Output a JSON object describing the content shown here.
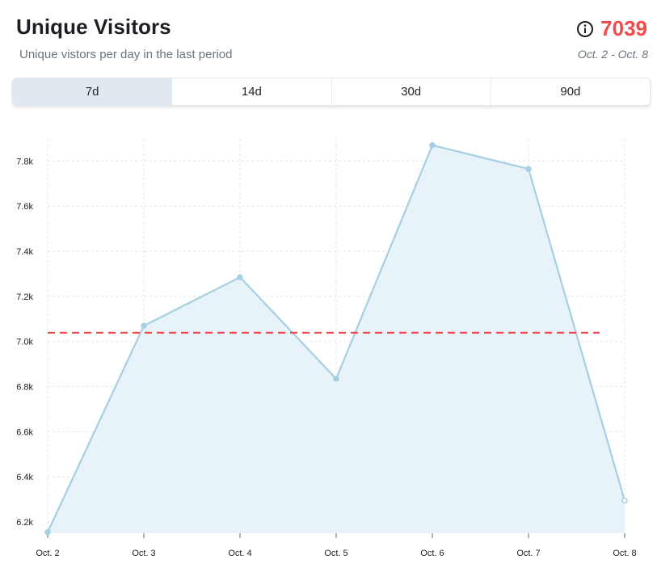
{
  "header": {
    "title": "Unique Visitors",
    "subtitle": "Unique vistors per day in the last period",
    "total": "7039",
    "date_range": "Oct. 2 - Oct. 8"
  },
  "tabs": [
    {
      "label": "7d",
      "active": true
    },
    {
      "label": "14d",
      "active": false
    },
    {
      "label": "30d",
      "active": false
    },
    {
      "label": "90d",
      "active": false
    }
  ],
  "colors": {
    "accent": "#f04c4c",
    "line": "#a5cfe3",
    "area": "#e8f2f9",
    "grid": "#e5e5e5"
  },
  "icons": {
    "info": "info-circle-icon"
  },
  "chart_data": {
    "type": "area",
    "categories": [
      "Oct. 2",
      "Oct. 3",
      "Oct. 4",
      "Oct. 5",
      "Oct. 6",
      "Oct. 7",
      "Oct. 8"
    ],
    "values": [
      6155,
      7070,
      7285,
      6835,
      7870,
      7765,
      6295
    ],
    "reference_line": 7039,
    "ylim": [
      6150,
      7880
    ],
    "yticks": [
      6200,
      6400,
      6600,
      6800,
      7000,
      7200,
      7400,
      7600,
      7800
    ],
    "ytick_labels": [
      "6.2k",
      "6.4k",
      "6.6k",
      "6.8k",
      "7.0k",
      "7.2k",
      "7.4k",
      "7.6k",
      "7.8k"
    ],
    "grid": true
  }
}
